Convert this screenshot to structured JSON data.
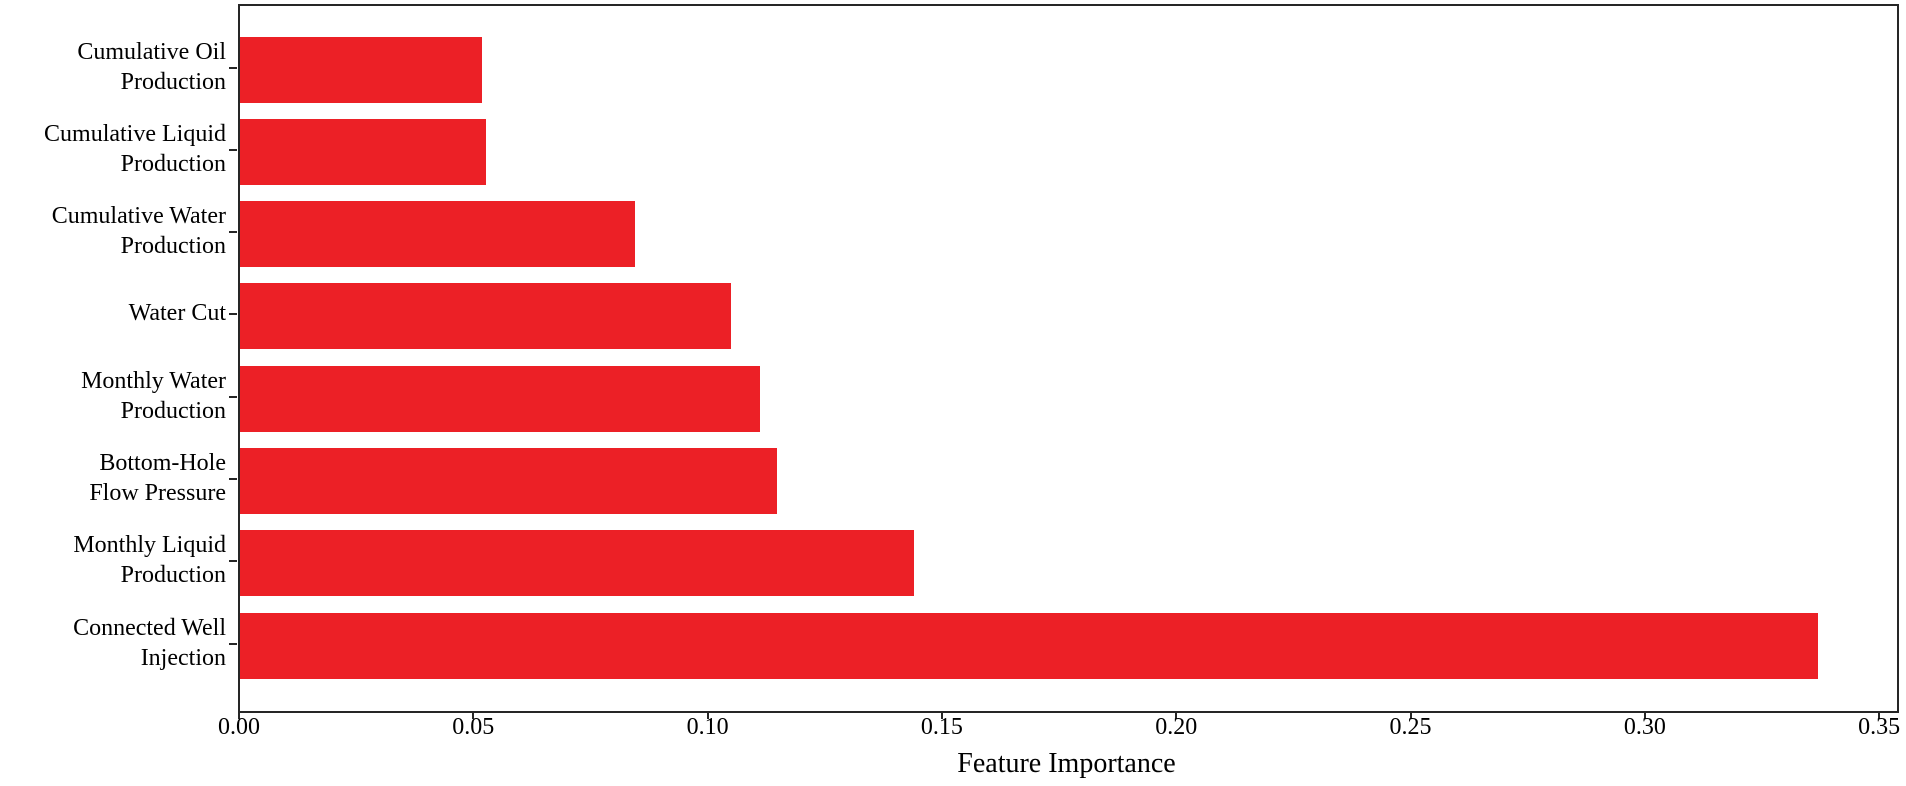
{
  "figure": {
    "background": "#ffffff"
  },
  "chart_data": {
    "type": "bar",
    "orientation": "horizontal",
    "title": "",
    "xlabel": "Feature Importance",
    "ylabel": "",
    "categories": [
      "Cumulative Oil\nProduction",
      "Cumulative Liquid\nProduction",
      "Cumulative Water\nProduction",
      "Water Cut",
      "Monthly Water\nProduction",
      "Bottom-Hole\nFlow Pressure",
      "Monthly Liquid\nProduction",
      "Connected Well\nInjection"
    ],
    "values": [
      0.0516,
      0.0524,
      0.0843,
      0.1048,
      0.111,
      0.1146,
      0.1438,
      0.3367
    ],
    "xlim": [
      0,
      0.3536
    ],
    "xticks": [
      0,
      0.05,
      0.1,
      0.15,
      0.2,
      0.25,
      0.3,
      0.35
    ],
    "xtick_labels": [
      "0.00",
      "0.05",
      "0.10",
      "0.15",
      "0.20",
      "0.25",
      "0.30",
      "0.35"
    ],
    "bar_color": "#EC2026",
    "axis_color": "#262626",
    "text_color": "#000000",
    "grid": false,
    "legend": null
  }
}
